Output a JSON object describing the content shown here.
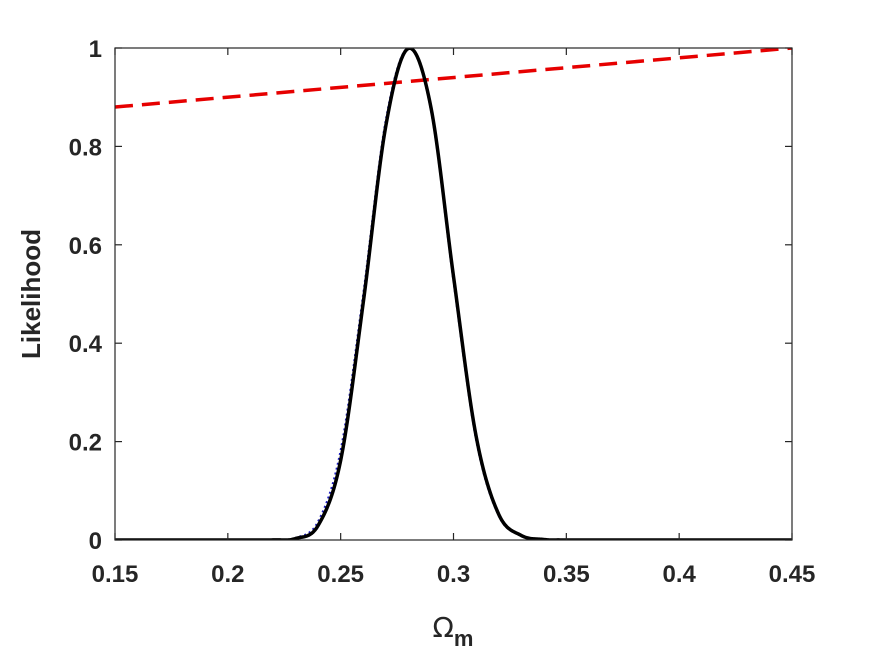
{
  "chart_data": {
    "type": "line",
    "title": "",
    "xlabel": {
      "symbol": "Ω",
      "subscript": "m"
    },
    "ylabel": "Likelihood",
    "xlim": [
      0.15,
      0.45
    ],
    "ylim": [
      0,
      1
    ],
    "xticks": [
      0.15,
      0.2,
      0.25,
      0.3,
      0.35,
      0.4,
      0.45
    ],
    "xtick_labels": [
      "0.15",
      "0.2",
      "0.25",
      "0.3",
      "0.35",
      "0.4",
      "0.45"
    ],
    "yticks": [
      0,
      0.2,
      0.4,
      0.6,
      0.8,
      1
    ],
    "ytick_labels": [
      "0",
      "0.2",
      "0.4",
      "0.6",
      "0.8",
      "1"
    ],
    "grid": false,
    "legend": "none",
    "series": [
      {
        "style": "dashed",
        "color": "#e60000",
        "x": [
          0.15,
          0.45
        ],
        "y": [
          0.88,
          1.0
        ]
      },
      {
        "style": "dotted",
        "color": "#1f1fbf",
        "x": [
          0.15,
          0.2,
          0.22,
          0.23,
          0.24,
          0.25,
          0.26,
          0.27,
          0.28,
          0.29,
          0.3,
          0.31,
          0.32,
          0.33,
          0.34,
          0.35,
          0.4,
          0.45
        ],
        "y": [
          0,
          0,
          0.0003,
          0.0044,
          0.0377,
          0.1827,
          0.5006,
          0.8539,
          1.0,
          0.8733,
          0.5251,
          0.2036,
          0.0495,
          0.0085,
          0.001,
          0.0001,
          0,
          0
        ]
      },
      {
        "style": "solid",
        "color": "#000000",
        "x": [
          0.15,
          0.2,
          0.22,
          0.23,
          0.24,
          0.25,
          0.26,
          0.27,
          0.28,
          0.29,
          0.3,
          0.31,
          0.32,
          0.33,
          0.34,
          0.35,
          0.4,
          0.45
        ],
        "y": [
          0,
          0,
          0.0002,
          0.003,
          0.0295,
          0.1619,
          0.4824,
          0.8416,
          0.9991,
          0.8793,
          0.5358,
          0.2116,
          0.0526,
          0.0093,
          0.0011,
          0.0001,
          0,
          0
        ]
      }
    ]
  }
}
